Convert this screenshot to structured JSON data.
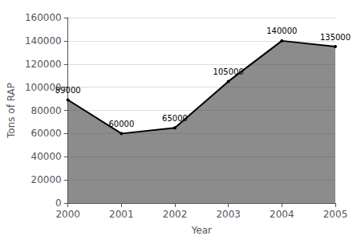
{
  "chart_data": {
    "type": "area",
    "x": [
      2000,
      2001,
      2002,
      2003,
      2004,
      2005
    ],
    "values": [
      89000,
      60000,
      65000,
      105000,
      140000,
      135000
    ],
    "color": "#000000",
    "xlabel": "Year",
    "ylabel": "Tons of RAP",
    "xlim": [
      2000,
      2005
    ],
    "xticks": [
      2000,
      2001,
      2002,
      2003,
      2004,
      2005
    ],
    "ylim": [
      0,
      160000
    ],
    "yticks": [
      0,
      20000,
      40000,
      60000,
      80000,
      100000,
      120000,
      140000,
      160000
    ],
    "grid": true,
    "data_labels": true
  }
}
